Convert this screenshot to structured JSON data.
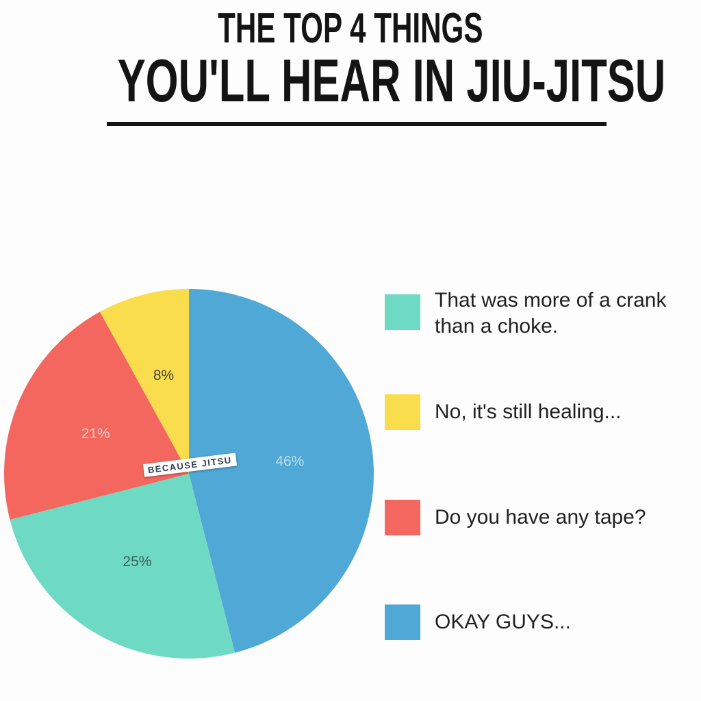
{
  "header": {
    "title_line1": "THE TOP 4 THINGS",
    "title_line2": "YOU'LL HEAR IN JIU-JITSU"
  },
  "watermark": {
    "text": "BECAUSE JITSU"
  },
  "colors": {
    "background": "#fdfdfd",
    "title_text": "#141414",
    "legend_text": "#212121",
    "watermark_text": "#2e4057",
    "watermark_bg": "#ffffff"
  },
  "chart_data": {
    "type": "pie",
    "title": "THE TOP 4 THINGS YOU'LL HEAR IN JIU-JITSU",
    "legend_position": "right",
    "start_angle_deg": 0,
    "direction": "clockwise",
    "label_radius": 0.55,
    "slices": [
      {
        "label": "OKAY GUYS...",
        "value": 46,
        "pct_label": "46%",
        "color": "#4fa8d5",
        "pct_color": "rgba(255,255,255,0.62)"
      },
      {
        "label": "That was more of a crank\nthan a choke.",
        "value": 25,
        "pct_label": "25%",
        "color": "#6edac3",
        "pct_color": "#3a5f57"
      },
      {
        "label": "Do you have any tape?",
        "value": 21,
        "pct_label": "21%",
        "color": "#f3675f",
        "pct_color": "rgba(255,255,255,0.65)"
      },
      {
        "label": "No, it's still healing...",
        "value": 8,
        "pct_label": "8%",
        "color": "#fadd4d",
        "pct_color": "#474433"
      }
    ],
    "legend_order": [
      1,
      3,
      2,
      0
    ]
  }
}
